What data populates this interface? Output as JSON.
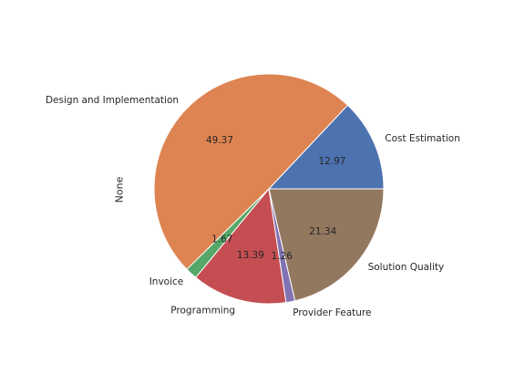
{
  "chart_data": {
    "type": "pie",
    "ylabel": "None",
    "slices": [
      {
        "label": "Cost Estimation",
        "value": 12.97,
        "color": "#4c72b0"
      },
      {
        "label": "Design and Implementation",
        "value": 49.37,
        "color": "#dd8452"
      },
      {
        "label": "Invoice",
        "value": 1.67,
        "color": "#55a868"
      },
      {
        "label": "Programming",
        "value": 13.39,
        "color": "#c44e52"
      },
      {
        "label": "Provider Feature",
        "value": 1.26,
        "color": "#8172b3"
      },
      {
        "label": "Solution Quality",
        "value": 21.34,
        "color": "#937860"
      }
    ],
    "start_angle_deg": 0,
    "direction": "counterclockwise",
    "pct_format": "%.2f"
  }
}
